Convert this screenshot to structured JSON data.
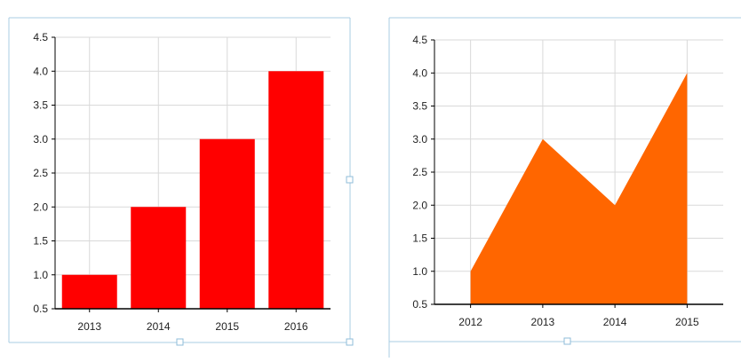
{
  "colors": {
    "bar_fill": "#ff0000",
    "area_fill": "#ff6600",
    "grid": "#d9d9d9",
    "axis": "#000000",
    "selection_frame": "#a9cde3"
  },
  "chart_data": [
    {
      "type": "bar",
      "categories": [
        "2013",
        "2014",
        "2015",
        "2016"
      ],
      "values": [
        1.0,
        2.0,
        3.0,
        4.0
      ],
      "yticks": [
        "0.5",
        "1.0",
        "1.5",
        "2.0",
        "2.5",
        "3.0",
        "3.5",
        "4.0",
        "4.5"
      ],
      "ylim": [
        0.5,
        4.5
      ],
      "grid": true,
      "title": "",
      "xlabel": "",
      "ylabel": ""
    },
    {
      "type": "area",
      "categories": [
        "2012",
        "2013",
        "2014",
        "2015"
      ],
      "values": [
        1.0,
        3.0,
        2.0,
        4.0
      ],
      "yticks": [
        "0.5",
        "1.0",
        "1.5",
        "2.0",
        "2.5",
        "3.0",
        "3.5",
        "4.0",
        "4.5"
      ],
      "ylim": [
        0.5,
        4.5
      ],
      "grid": true,
      "title": "",
      "xlabel": "",
      "ylabel": ""
    }
  ]
}
